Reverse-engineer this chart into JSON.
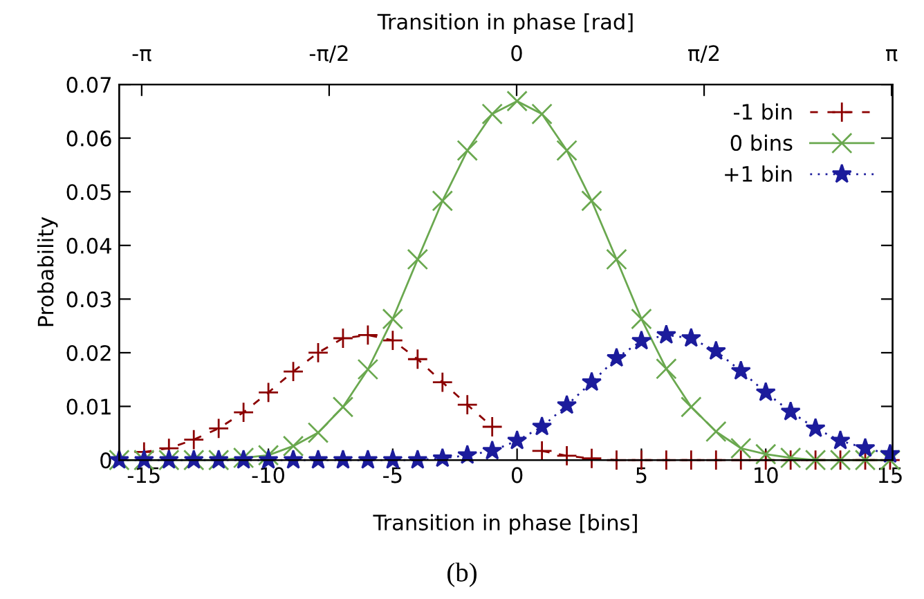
{
  "chart_data": {
    "type": "line",
    "xlabel": "Transition in phase [bins]",
    "x2label": "Transition in phase [rad]",
    "ylabel": "Probability",
    "annotations": [
      "(b)"
    ],
    "x": [
      -16,
      -15,
      -14,
      -13,
      -12,
      -11,
      -10,
      -9,
      -8,
      -7,
      -6,
      -5,
      -4,
      -3,
      -2,
      -1,
      0,
      1,
      2,
      3,
      4,
      5,
      6,
      7,
      8,
      9,
      10,
      11,
      12,
      13,
      14,
      15
    ],
    "series": [
      {
        "name": "-1 bin",
        "color": "#8b0000",
        "marker": "plus",
        "line_style": "dashed",
        "values": [
          null,
          0.0015,
          0.0022,
          0.0038,
          0.0059,
          0.0089,
          0.0126,
          0.0165,
          0.02,
          0.0227,
          0.0233,
          0.0223,
          0.0188,
          0.0145,
          0.0103,
          0.0062,
          null,
          0.0017,
          0.0008,
          0.0003,
          0,
          0,
          0,
          0,
          0,
          0,
          0,
          0,
          0,
          0,
          0,
          0
        ]
      },
      {
        "name": "0 bins",
        "color": "#6aa84f",
        "marker": "cross",
        "line_style": "solid",
        "values": [
          0,
          0,
          0,
          0,
          0,
          0.0004,
          0.0009,
          0.0026,
          0.0051,
          0.0099,
          0.0169,
          0.0263,
          0.0374,
          0.0483,
          0.0577,
          0.0645,
          0.0669,
          0.0645,
          0.0577,
          0.0483,
          0.0374,
          0.0263,
          0.017,
          0.0099,
          0.0053,
          0.0022,
          0.0011,
          0.0004,
          0,
          0,
          0,
          0
        ]
      },
      {
        "name": "+1 bin",
        "color": "#1c1c9c",
        "marker": "star",
        "line_style": "dotted",
        "values": [
          0,
          0,
          0,
          0,
          0,
          0,
          0,
          0,
          0,
          0,
          0,
          0,
          0,
          0.0003,
          0.0009,
          0.0017,
          0.0036,
          0.0062,
          0.0102,
          0.0145,
          0.019,
          0.0222,
          0.0233,
          0.0227,
          0.0203,
          0.0166,
          0.0126,
          0.009,
          0.0059,
          0.0036,
          0.0022,
          0.0011
        ]
      }
    ],
    "xlim": [
      -16,
      15.1
    ],
    "xticks": [
      -15,
      -10,
      -5,
      0,
      5,
      10,
      15
    ],
    "x2lim": [
      -3.33,
      3.15
    ],
    "x2ticks": [
      {
        "value": -3.1416,
        "label": "-π"
      },
      {
        "value": -1.5708,
        "label": "-π/2"
      },
      {
        "value": 0,
        "label": "0"
      },
      {
        "value": 1.5708,
        "label": "π/2"
      },
      {
        "value": 3.1416,
        "label": "π"
      }
    ],
    "ylim": [
      0,
      0.07
    ],
    "yticks": [
      {
        "value": 0,
        "label": "0"
      },
      0.01,
      0.02,
      0.03,
      0.04,
      0.05,
      0.06,
      0.07
    ],
    "grid": false,
    "legend": "top right"
  }
}
